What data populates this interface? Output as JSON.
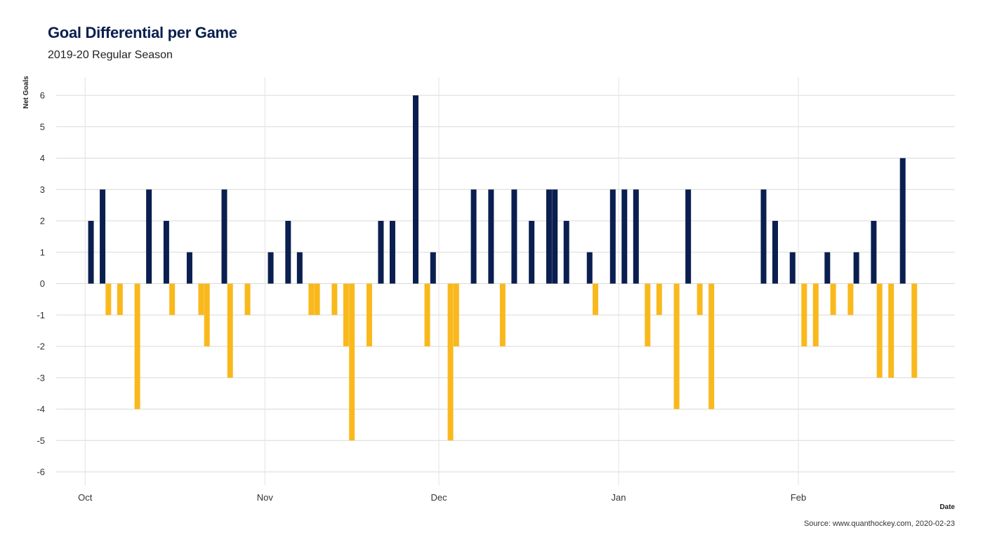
{
  "chart_data": {
    "type": "bar",
    "title": "Goal Differential per Game",
    "subtitle": "2019-20 Regular Season",
    "xlabel": "Date",
    "ylabel": "Net Goals",
    "caption": "Source: www.quanthockey.com, 2020-02-23",
    "ylim": [
      -6,
      6
    ],
    "y_ticks": [
      "-6",
      "-5",
      "-4",
      "-3",
      "-2",
      "-1",
      "0",
      "1",
      "2",
      "3",
      "4",
      "5",
      "6"
    ],
    "x_ticks": [
      {
        "label": "Oct",
        "date": "2019-10-01"
      },
      {
        "label": "Nov",
        "date": "2019-11-01"
      },
      {
        "label": "Dec",
        "date": "2019-12-01"
      },
      {
        "label": "Jan",
        "date": "2020-01-01"
      },
      {
        "label": "Feb",
        "date": "2020-02-01"
      }
    ],
    "xlim": [
      "2019-09-26",
      "2020-02-28"
    ],
    "grid": true,
    "colors": {
      "positive": "#0a1f4f",
      "negative": "#f9b91d"
    },
    "games": [
      {
        "date": "2019-10-02",
        "value": 2
      },
      {
        "date": "2019-10-04",
        "value": 3
      },
      {
        "date": "2019-10-05",
        "value": -1
      },
      {
        "date": "2019-10-07",
        "value": -1
      },
      {
        "date": "2019-10-10",
        "value": -4
      },
      {
        "date": "2019-10-12",
        "value": 3
      },
      {
        "date": "2019-10-15",
        "value": 2
      },
      {
        "date": "2019-10-16",
        "value": -1
      },
      {
        "date": "2019-10-19",
        "value": 1
      },
      {
        "date": "2019-10-21",
        "value": -1
      },
      {
        "date": "2019-10-22",
        "value": -2
      },
      {
        "date": "2019-10-25",
        "value": 3
      },
      {
        "date": "2019-10-26",
        "value": -3
      },
      {
        "date": "2019-10-29",
        "value": -1
      },
      {
        "date": "2019-11-02",
        "value": 1
      },
      {
        "date": "2019-11-05",
        "value": 2
      },
      {
        "date": "2019-11-07",
        "value": 1
      },
      {
        "date": "2019-11-09",
        "value": -1
      },
      {
        "date": "2019-11-10",
        "value": -1
      },
      {
        "date": "2019-11-13",
        "value": -1
      },
      {
        "date": "2019-11-15",
        "value": -2
      },
      {
        "date": "2019-11-16",
        "value": -5
      },
      {
        "date": "2019-11-19",
        "value": -2
      },
      {
        "date": "2019-11-21",
        "value": 2
      },
      {
        "date": "2019-11-23",
        "value": 2
      },
      {
        "date": "2019-11-27",
        "value": 6
      },
      {
        "date": "2019-11-29",
        "value": -2
      },
      {
        "date": "2019-11-30",
        "value": 1
      },
      {
        "date": "2019-12-03",
        "value": -5
      },
      {
        "date": "2019-12-04",
        "value": -2
      },
      {
        "date": "2019-12-07",
        "value": 3
      },
      {
        "date": "2019-12-10",
        "value": 3
      },
      {
        "date": "2019-12-12",
        "value": -2
      },
      {
        "date": "2019-12-14",
        "value": 3
      },
      {
        "date": "2019-12-17",
        "value": 2
      },
      {
        "date": "2019-12-20",
        "value": 3
      },
      {
        "date": "2019-12-21",
        "value": 3
      },
      {
        "date": "2019-12-23",
        "value": 2
      },
      {
        "date": "2019-12-27",
        "value": 1
      },
      {
        "date": "2019-12-28",
        "value": -1
      },
      {
        "date": "2019-12-31",
        "value": 3
      },
      {
        "date": "2020-01-02",
        "value": 3
      },
      {
        "date": "2020-01-04",
        "value": 3
      },
      {
        "date": "2020-01-06",
        "value": -2
      },
      {
        "date": "2020-01-08",
        "value": -1
      },
      {
        "date": "2020-01-11",
        "value": -4
      },
      {
        "date": "2020-01-13",
        "value": 3
      },
      {
        "date": "2020-01-15",
        "value": -1
      },
      {
        "date": "2020-01-17",
        "value": -4
      },
      {
        "date": "2020-01-26",
        "value": 3
      },
      {
        "date": "2020-01-28",
        "value": 2
      },
      {
        "date": "2020-01-31",
        "value": 1
      },
      {
        "date": "2020-02-02",
        "value": -2
      },
      {
        "date": "2020-02-04",
        "value": -2
      },
      {
        "date": "2020-02-06",
        "value": 1
      },
      {
        "date": "2020-02-07",
        "value": -1
      },
      {
        "date": "2020-02-10",
        "value": -1
      },
      {
        "date": "2020-02-11",
        "value": 1
      },
      {
        "date": "2020-02-14",
        "value": 2
      },
      {
        "date": "2020-02-15",
        "value": -3
      },
      {
        "date": "2020-02-17",
        "value": -3
      },
      {
        "date": "2020-02-19",
        "value": 4
      },
      {
        "date": "2020-02-21",
        "value": -3
      }
    ]
  }
}
